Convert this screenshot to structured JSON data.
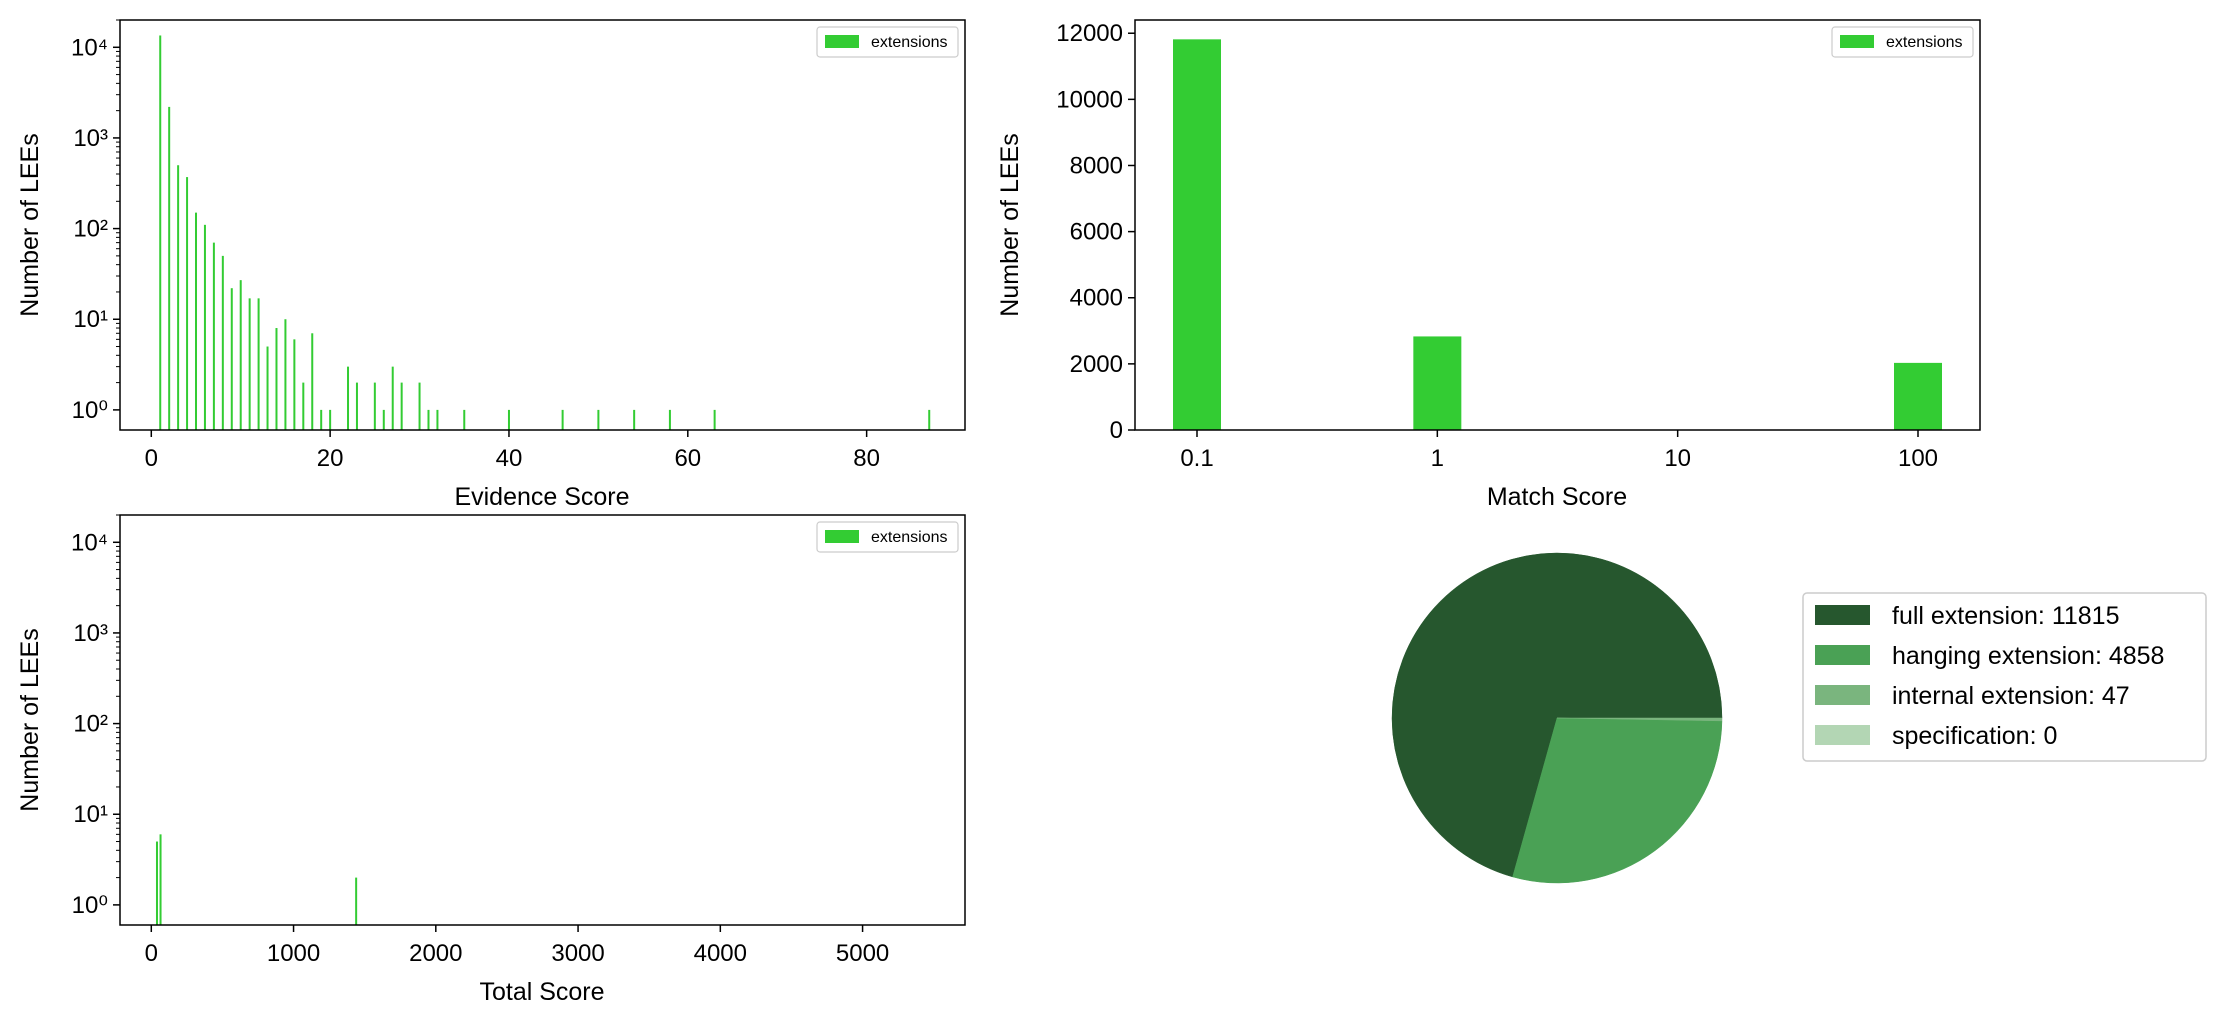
{
  "colors": {
    "bar": "#33cc33",
    "pie": [
      "#26572e",
      "#4aa155",
      "#7ab57e",
      "#b3d6b4"
    ]
  },
  "chart_data": [
    {
      "id": "evidence",
      "type": "bar",
      "xlabel": "Evidence Score",
      "ylabel": "Number of LEEs",
      "yscale": "log",
      "xlim": [
        -3.5,
        91
      ],
      "ylim": [
        0.6,
        20000
      ],
      "xticks": [
        0,
        20,
        40,
        60,
        80
      ],
      "yticks": [
        1,
        10,
        100,
        1000,
        10000
      ],
      "legend": {
        "label": "extensions",
        "position": "upper right"
      },
      "series": [
        {
          "name": "extensions",
          "x": [
            1,
            2,
            3,
            4,
            5,
            6,
            7,
            8,
            9,
            10,
            11,
            12,
            13,
            14,
            15,
            16,
            17,
            18,
            19,
            20,
            22,
            23,
            25,
            26,
            27,
            28,
            30,
            31,
            32,
            35,
            40,
            46,
            50,
            54,
            58,
            63,
            87
          ],
          "values": [
            13500,
            2200,
            500,
            370,
            150,
            110,
            70,
            50,
            22,
            27,
            17,
            17,
            5,
            8,
            10,
            6,
            2,
            7,
            1,
            1,
            3,
            2,
            2,
            1,
            3,
            2,
            2,
            1,
            1,
            1,
            1,
            1,
            1,
            1,
            1,
            1,
            1
          ]
        }
      ]
    },
    {
      "id": "match",
      "type": "bar",
      "xlabel": "Match Score",
      "ylabel": "Number of LEEs",
      "ylim": [
        0,
        12400
      ],
      "categories": [
        "0.1",
        "1",
        "10",
        "100"
      ],
      "yticks": [
        0,
        2000,
        4000,
        6000,
        8000,
        10000,
        12000
      ],
      "legend": {
        "label": "extensions",
        "position": "upper right"
      },
      "series": [
        {
          "name": "extensions",
          "values": [
            11815,
            2830,
            0,
            2030
          ]
        }
      ]
    },
    {
      "id": "total",
      "type": "bar",
      "xlabel": "Total Score",
      "ylabel": "Number of LEEs",
      "yscale": "log",
      "xlim": [
        -220,
        5720
      ],
      "ylim": [
        0.6,
        20000
      ],
      "xticks": [
        0,
        1000,
        2000,
        3000,
        4000,
        5000
      ],
      "yticks": [
        1,
        10,
        100,
        1000,
        10000
      ],
      "legend": {
        "label": "extensions",
        "position": "upper right"
      },
      "series": [
        {
          "name": "extensions",
          "x": [
            40,
            65,
            1440
          ],
          "values": [
            5,
            6,
            2
          ]
        }
      ]
    },
    {
      "id": "pie",
      "type": "pie",
      "labels": [
        "full extension: 11815",
        "hanging extension: 4858",
        "internal extension: 47",
        "specification: 0"
      ],
      "values": [
        11815,
        4858,
        47,
        0
      ],
      "legend": {
        "position": "right"
      }
    }
  ]
}
